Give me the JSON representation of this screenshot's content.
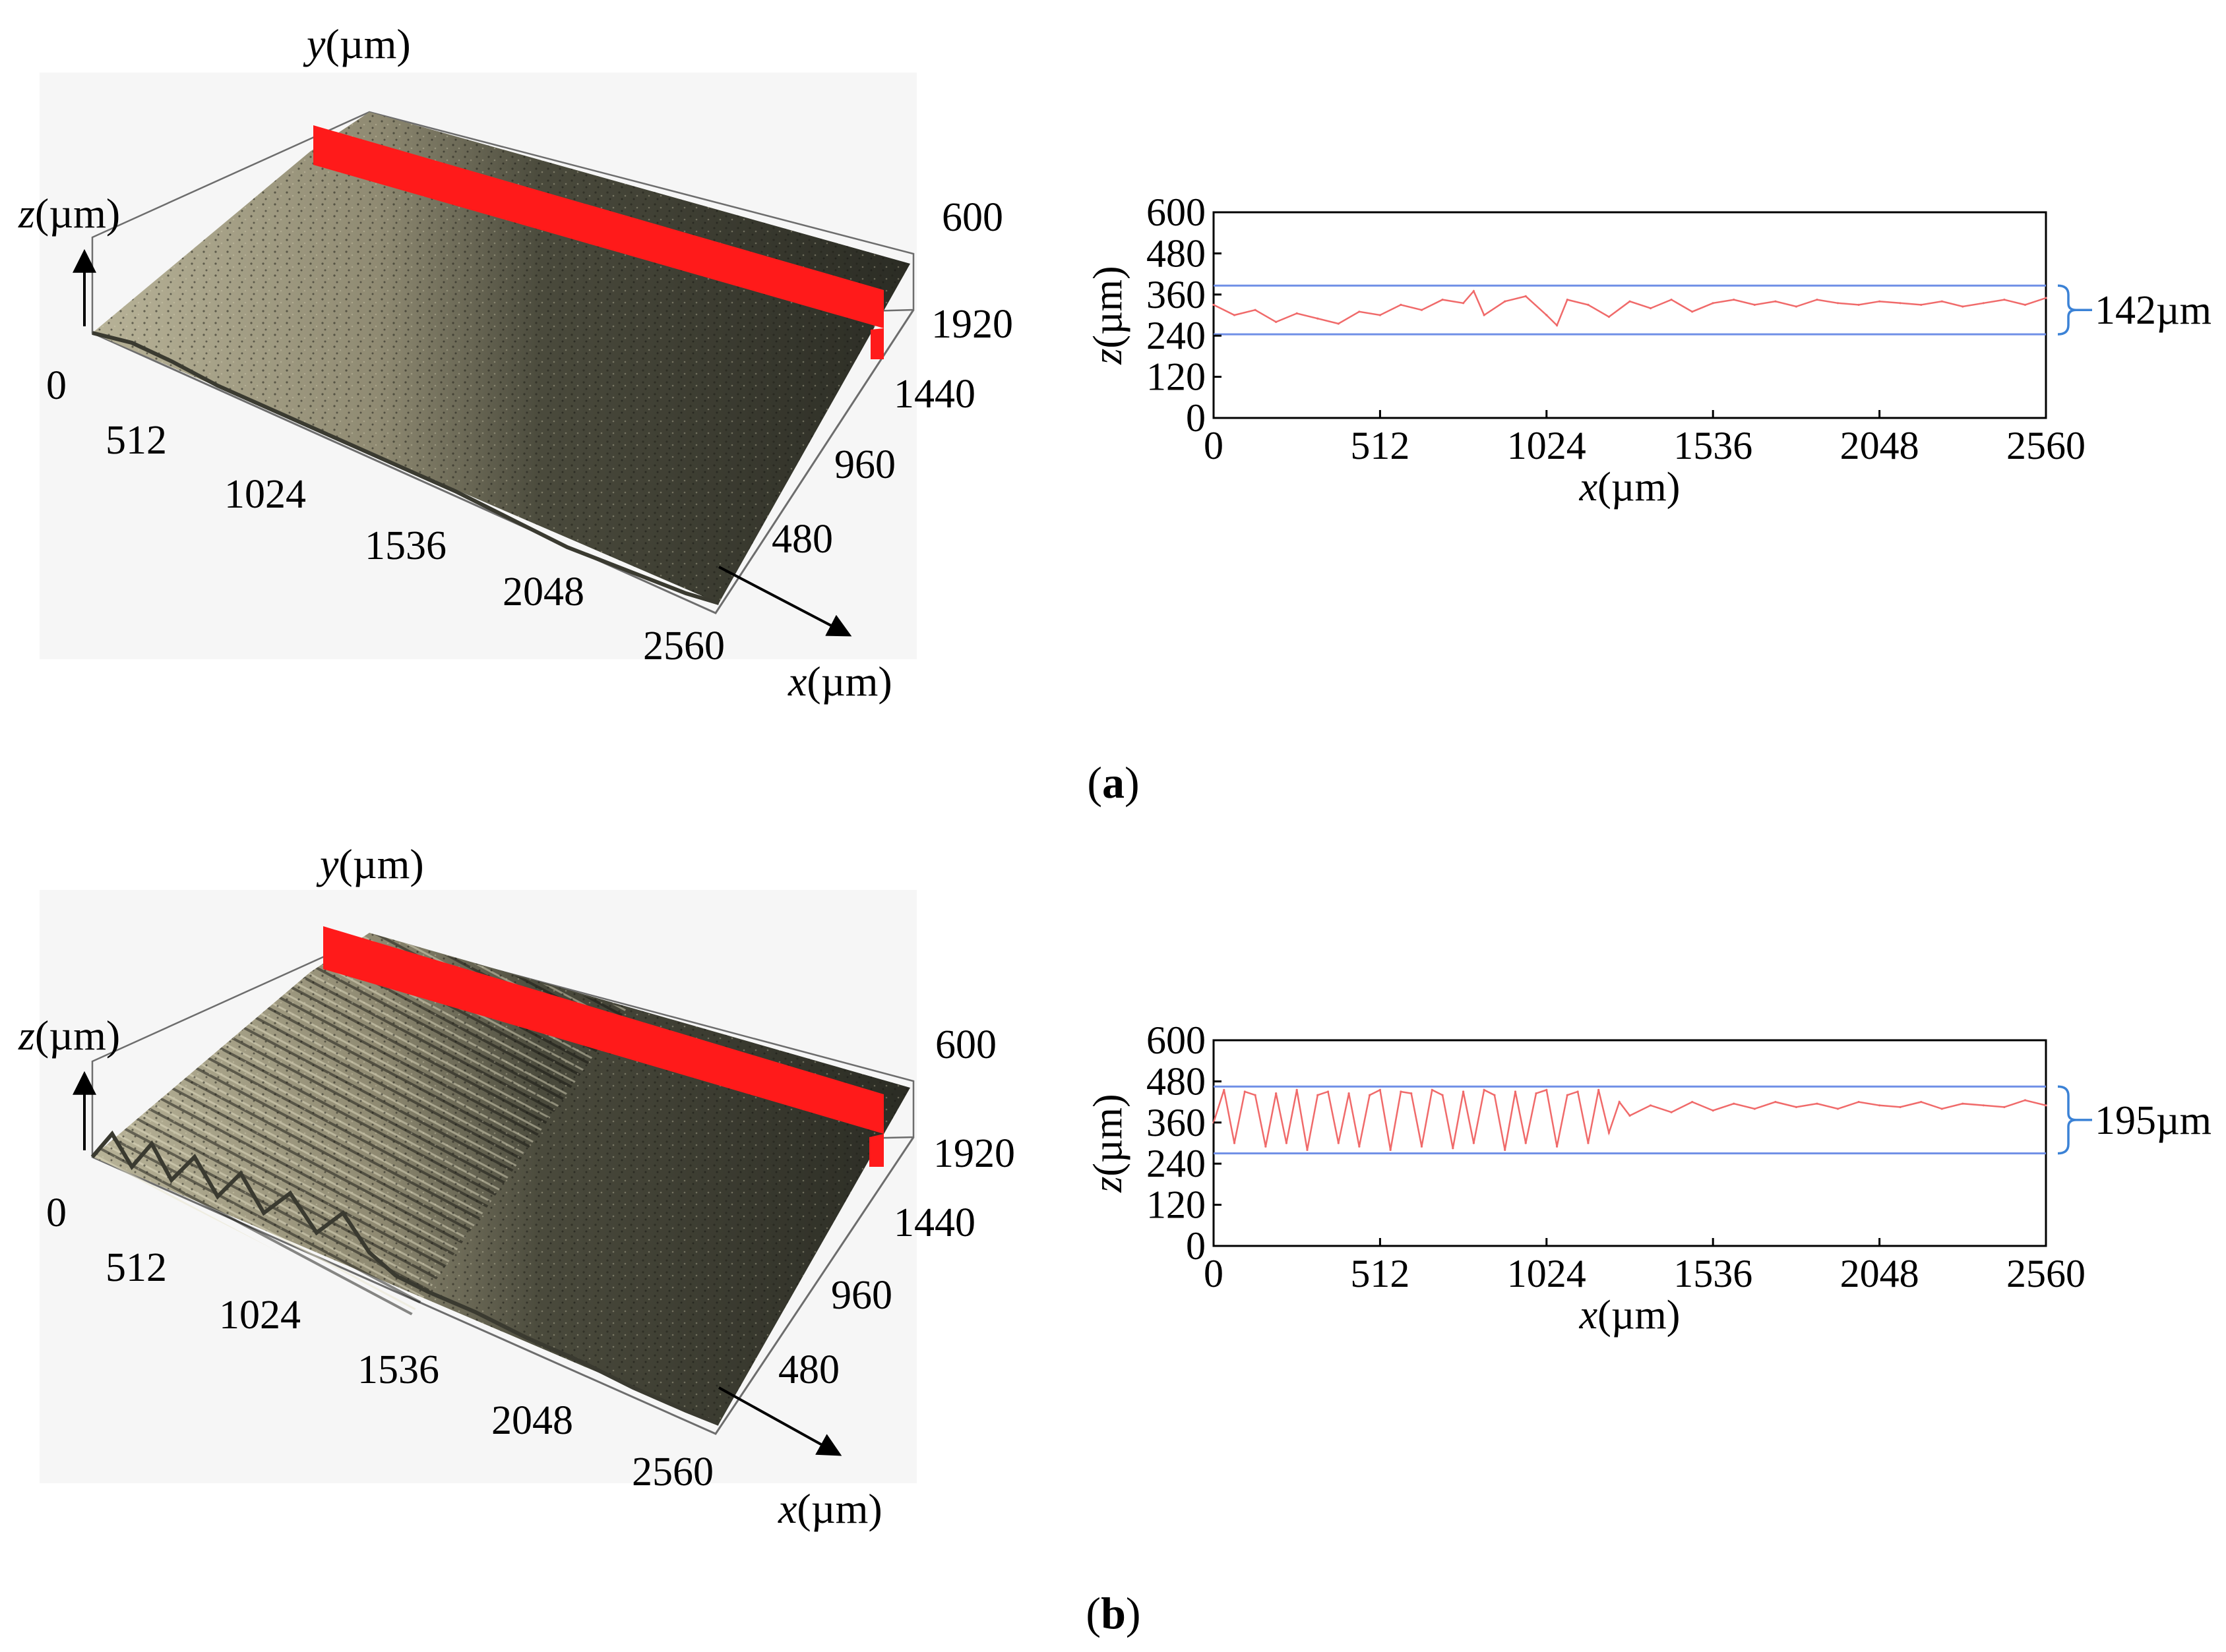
{
  "figure": {
    "panels": [
      {
        "id": "a",
        "caption_open": "(",
        "caption_letter": "a",
        "caption_close": ")",
        "surface_axes": {
          "z_label_var": "z",
          "z_label_unit": "(µm)",
          "y_label_var": "y",
          "y_label_unit": "(µm)",
          "x_label_var": "x",
          "x_label_unit": "(µm)",
          "z_top_tick": "600",
          "x_ticks": [
            "0",
            "512",
            "1024",
            "1536",
            "2048",
            "2560"
          ],
          "y_ticks": [
            "480",
            "960",
            "1440",
            "1920"
          ],
          "surface_style": "smooth",
          "section_plane_color": "#ff1a1a"
        }
      },
      {
        "id": "b",
        "caption_open": "(",
        "caption_letter": "b",
        "caption_close": ")",
        "surface_axes": {
          "z_label_var": "z",
          "z_label_unit": "(µm)",
          "y_label_var": "y",
          "y_label_unit": "(µm)",
          "x_label_var": "x",
          "x_label_unit": "(µm)",
          "z_top_tick": "600",
          "x_ticks": [
            "0",
            "512",
            "1024",
            "1536",
            "2048",
            "2560"
          ],
          "y_ticks": [
            "480",
            "960",
            "1440",
            "1920"
          ],
          "surface_style": "rough",
          "section_plane_color": "#ff1a1a"
        }
      }
    ]
  },
  "chart_data": [
    {
      "panel": "a",
      "type": "line",
      "title": "",
      "xlabel_var": "x",
      "xlabel_unit": "(µm)",
      "ylabel_var": "z",
      "ylabel_unit": "(µm)",
      "xlim": [
        0,
        2560
      ],
      "ylim": [
        0,
        600
      ],
      "x_ticks": [
        0,
        512,
        1024,
        1536,
        2048,
        2560
      ],
      "y_ticks": [
        0,
        120,
        240,
        360,
        480,
        600
      ],
      "line_color": "#f06a6a",
      "band_color": "#6f8fe6",
      "bracket_color": "#3b82d6",
      "band_lower": 244,
      "band_upper": 386,
      "band_label": "142µm",
      "series": [
        {
          "name": "profile",
          "x": [
            0,
            64,
            128,
            192,
            256,
            320,
            384,
            448,
            512,
            576,
            640,
            704,
            768,
            800,
            832,
            896,
            960,
            1024,
            1056,
            1088,
            1152,
            1216,
            1280,
            1344,
            1408,
            1472,
            1536,
            1600,
            1664,
            1728,
            1792,
            1856,
            1920,
            1984,
            2048,
            2112,
            2176,
            2240,
            2304,
            2368,
            2432,
            2496,
            2560
          ],
          "values": [
            330,
            300,
            315,
            280,
            305,
            290,
            275,
            310,
            300,
            330,
            315,
            345,
            335,
            370,
            300,
            340,
            355,
            300,
            270,
            345,
            330,
            295,
            340,
            320,
            345,
            310,
            335,
            345,
            330,
            340,
            325,
            345,
            335,
            330,
            340,
            335,
            330,
            340,
            325,
            335,
            345,
            330,
            350
          ]
        }
      ]
    },
    {
      "panel": "b",
      "type": "line",
      "title": "",
      "xlabel_var": "x",
      "xlabel_unit": "(µm)",
      "ylabel_var": "z",
      "ylabel_unit": "(µm)",
      "xlim": [
        0,
        2560
      ],
      "ylim": [
        0,
        600
      ],
      "x_ticks": [
        0,
        512,
        1024,
        1536,
        2048,
        2560
      ],
      "y_ticks": [
        0,
        120,
        240,
        360,
        480,
        600
      ],
      "line_color": "#f06a6a",
      "band_color": "#6f8fe6",
      "bracket_color": "#3b82d6",
      "band_lower": 270,
      "band_upper": 465,
      "band_label": "195µm",
      "series": [
        {
          "name": "profile",
          "x": [
            0,
            32,
            64,
            96,
            128,
            160,
            192,
            224,
            256,
            288,
            320,
            352,
            384,
            416,
            448,
            480,
            512,
            544,
            576,
            608,
            640,
            672,
            704,
            736,
            768,
            800,
            832,
            864,
            896,
            928,
            960,
            992,
            1024,
            1056,
            1088,
            1120,
            1152,
            1184,
            1216,
            1248,
            1280,
            1344,
            1408,
            1472,
            1536,
            1600,
            1664,
            1728,
            1792,
            1856,
            1920,
            1984,
            2048,
            2112,
            2176,
            2240,
            2304,
            2368,
            2432,
            2496,
            2560
          ],
          "values": [
            360,
            455,
            300,
            450,
            440,
            290,
            445,
            300,
            455,
            280,
            440,
            450,
            300,
            445,
            290,
            440,
            455,
            280,
            450,
            445,
            290,
            455,
            440,
            285,
            450,
            300,
            455,
            440,
            280,
            450,
            300,
            445,
            455,
            290,
            440,
            450,
            300,
            455,
            330,
            420,
            380,
            410,
            390,
            420,
            395,
            415,
            400,
            420,
            405,
            415,
            400,
            420,
            410,
            405,
            420,
            400,
            415,
            410,
            405,
            425,
            410
          ]
        }
      ]
    }
  ]
}
